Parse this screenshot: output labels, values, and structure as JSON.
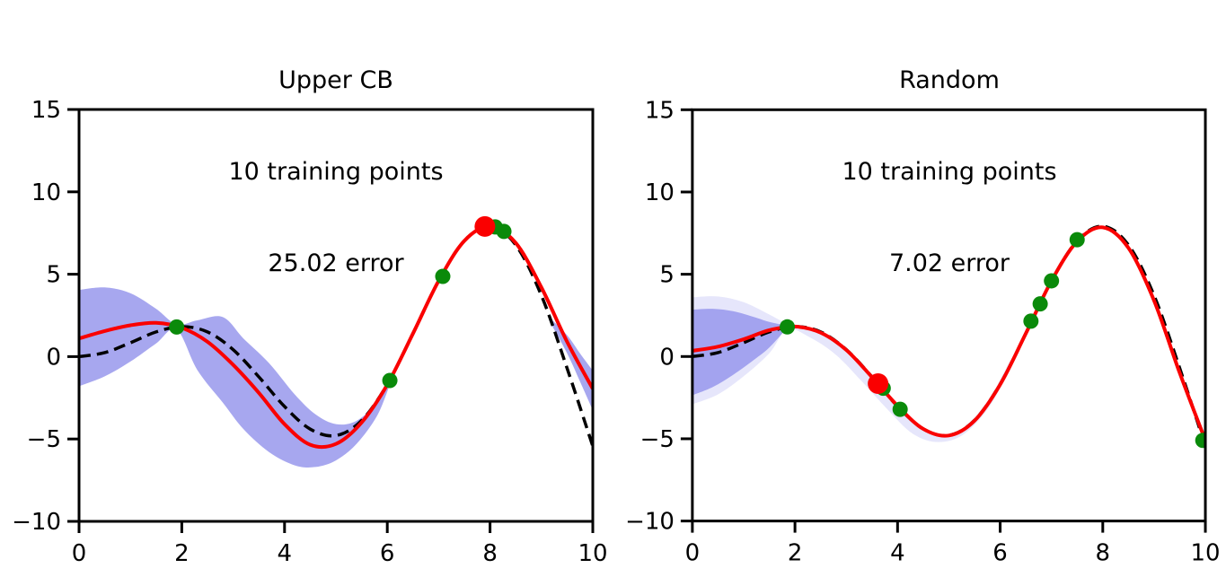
{
  "figure": {
    "background": "#ffffff"
  },
  "chart_data": [
    {
      "id": "upper_cb",
      "type": "line",
      "title_lines": [
        "Upper CB",
        "10 training points",
        "25.02 error"
      ],
      "xlabel": "",
      "ylabel": "",
      "xlim": [
        0,
        10
      ],
      "ylim": [
        -10,
        15
      ],
      "grid": false,
      "legend": "none",
      "xticks": [
        0,
        2,
        4,
        6,
        8,
        10
      ],
      "xtick_labels": [
        "0",
        "2",
        "4",
        "6",
        "8",
        "10"
      ],
      "yticks": [
        -10,
        -5,
        0,
        5,
        10,
        15
      ],
      "ytick_labels": [
        "−10",
        "−5",
        "0",
        "5",
        "10",
        "15"
      ],
      "bands": [
        {
          "name": "confidence-band",
          "color": "#0a0ad4",
          "opacity": 0.36,
          "x": [
            0,
            0.5,
            1.0,
            1.5,
            1.9,
            2.3,
            2.8,
            3.2,
            3.7,
            4.2,
            4.6,
            5.0,
            5.4,
            5.8,
            6.05
          ],
          "upper": [
            4.05,
            4.2,
            3.85,
            2.9,
            1.95,
            2.2,
            2.4,
            1.1,
            -0.4,
            -2.3,
            -3.5,
            -4.1,
            -3.9,
            -2.8,
            -1.5
          ],
          "lower": [
            -1.8,
            -1.2,
            -0.3,
            0.8,
            1.65,
            -0.8,
            -2.8,
            -4.4,
            -5.8,
            -6.6,
            -6.7,
            -6.3,
            -5.3,
            -3.6,
            -1.7
          ]
        },
        {
          "name": "confidence-band-right",
          "color": "#0a0ad4",
          "opacity": 0.36,
          "x": [
            9.15,
            9.5,
            9.75,
            10
          ],
          "upper": [
            2.4,
            1.3,
            0.2,
            -0.85
          ],
          "lower": [
            2.2,
            0.2,
            -1.5,
            -3.25
          ]
        }
      ],
      "series": [
        {
          "name": "true function",
          "style": "dashed",
          "color": "#000000",
          "width": 3.5,
          "dash": "13 7",
          "x": [
            0,
            0.5,
            1,
            1.5,
            2,
            2.5,
            3,
            3.5,
            4,
            4.5,
            5,
            5.5,
            6,
            6.5,
            7,
            7.5,
            8,
            8.5,
            9,
            9.5,
            10
          ],
          "y": [
            0,
            0.24,
            0.84,
            1.5,
            1.82,
            1.5,
            0.42,
            -1.23,
            -3.03,
            -4.4,
            -4.79,
            -3.88,
            -1.68,
            1.4,
            4.6,
            7.03,
            7.92,
            6.78,
            3.71,
            -0.71,
            -5.44
          ]
        },
        {
          "name": "predicted mean",
          "style": "solid",
          "color": "#fa0000",
          "width": 4,
          "dash": "",
          "x": [
            0,
            0.5,
            1,
            1.5,
            2,
            2.5,
            3,
            3.5,
            4,
            4.5,
            5,
            5.5,
            6,
            6.5,
            7,
            7.5,
            8,
            8.5,
            9,
            9.5,
            10
          ],
          "y": [
            1.1,
            1.55,
            1.9,
            2.05,
            1.75,
            0.9,
            -0.5,
            -2.2,
            -4.1,
            -5.35,
            -5.3,
            -4.0,
            -1.7,
            1.4,
            4.6,
            7.03,
            7.9,
            6.9,
            4.2,
            0.9,
            -1.95
          ]
        }
      ],
      "points": [
        {
          "name": "training-point",
          "color": "#0a8a0a",
          "radius": 8.5,
          "xy": [
            [
              1.9,
              1.8
            ],
            [
              6.05,
              -1.45
            ],
            [
              7.08,
              4.87
            ],
            [
              8.1,
              7.87
            ],
            [
              8.27,
              7.6
            ]
          ]
        },
        {
          "name": "selected-point",
          "color": "#fa0000",
          "radius": 11.5,
          "xy": [
            [
              7.9,
              7.9
            ]
          ]
        }
      ]
    },
    {
      "id": "random",
      "type": "line",
      "title_lines": [
        "Random",
        "10 training points",
        "7.02 error"
      ],
      "xlabel": "",
      "ylabel": "",
      "xlim": [
        0,
        10
      ],
      "ylim": [
        -10,
        15
      ],
      "grid": false,
      "legend": "none",
      "xticks": [
        0,
        2,
        4,
        6,
        8,
        10
      ],
      "xtick_labels": [
        "0",
        "2",
        "4",
        "6",
        "8",
        "10"
      ],
      "yticks": [
        -10,
        -5,
        0,
        5,
        10,
        15
      ],
      "ytick_labels": [
        "−10",
        "−5",
        "0",
        "5",
        "10",
        "15"
      ],
      "bands": [
        {
          "name": "confidence-band-wide",
          "color": "#0a0ad4",
          "opacity": 0.1,
          "x": [
            0,
            0.5,
            1.0,
            1.5,
            1.85,
            2.3,
            2.8,
            3.3,
            3.8,
            4.3,
            4.8,
            5.3,
            5.8,
            6.2
          ],
          "upper": [
            3.6,
            3.65,
            3.3,
            2.55,
            2.0,
            1.7,
            0.8,
            -0.7,
            -2.4,
            -4.0,
            -4.75,
            -4.3,
            -2.5,
            -0.2
          ],
          "lower": [
            -2.9,
            -2.3,
            -1.2,
            0.2,
            1.65,
            1.15,
            0.1,
            -1.5,
            -3.2,
            -4.7,
            -5.2,
            -4.7,
            -3.0,
            -0.7
          ]
        },
        {
          "name": "confidence-band",
          "color": "#0a0ad4",
          "opacity": 0.3,
          "x": [
            0,
            0.4,
            0.8,
            1.2,
            1.5,
            1.85
          ],
          "upper": [
            2.85,
            2.9,
            2.75,
            2.4,
            2.1,
            1.87
          ],
          "lower": [
            -2.35,
            -1.85,
            -1.1,
            -0.2,
            0.55,
            1.75
          ]
        }
      ],
      "series": [
        {
          "name": "true function",
          "style": "dashed",
          "color": "#000000",
          "width": 3.5,
          "dash": "13 7",
          "x": [
            0,
            0.5,
            1,
            1.5,
            2,
            2.5,
            3,
            3.5,
            4,
            4.5,
            5,
            5.5,
            6,
            6.5,
            7,
            7.5,
            8,
            8.5,
            9,
            9.5,
            10
          ],
          "y": [
            0,
            0.24,
            0.84,
            1.5,
            1.82,
            1.5,
            0.42,
            -1.23,
            -3.03,
            -4.4,
            -4.79,
            -3.88,
            -1.68,
            1.4,
            4.6,
            7.03,
            7.92,
            6.78,
            3.71,
            -0.71,
            -5.44
          ]
        },
        {
          "name": "predicted mean",
          "style": "solid",
          "color": "#fa0000",
          "width": 4,
          "dash": "",
          "x": [
            0,
            0.5,
            1,
            1.5,
            2,
            2.5,
            3,
            3.5,
            4,
            4.5,
            5,
            5.5,
            6,
            6.5,
            7,
            7.5,
            8,
            8.5,
            9,
            9.5,
            10
          ],
          "y": [
            0.35,
            0.6,
            1.05,
            1.6,
            1.82,
            1.45,
            0.4,
            -1.25,
            -3.0,
            -4.4,
            -4.8,
            -3.9,
            -1.7,
            1.4,
            4.6,
            7.0,
            7.85,
            6.6,
            3.4,
            -1.0,
            -5.1
          ]
        }
      ],
      "points": [
        {
          "name": "training-point",
          "color": "#0a8a0a",
          "radius": 8.5,
          "xy": [
            [
              1.85,
              1.8
            ],
            [
              3.72,
              -1.93
            ],
            [
              4.05,
              -3.21
            ],
            [
              6.6,
              2.15
            ],
            [
              6.78,
              3.2
            ],
            [
              7.0,
              4.6
            ],
            [
              7.5,
              7.1
            ],
            [
              9.95,
              -5.1
            ]
          ]
        },
        {
          "name": "selected-point",
          "color": "#fa0000",
          "radius": 11.5,
          "xy": [
            [
              3.62,
              -1.65
            ]
          ]
        }
      ]
    }
  ]
}
